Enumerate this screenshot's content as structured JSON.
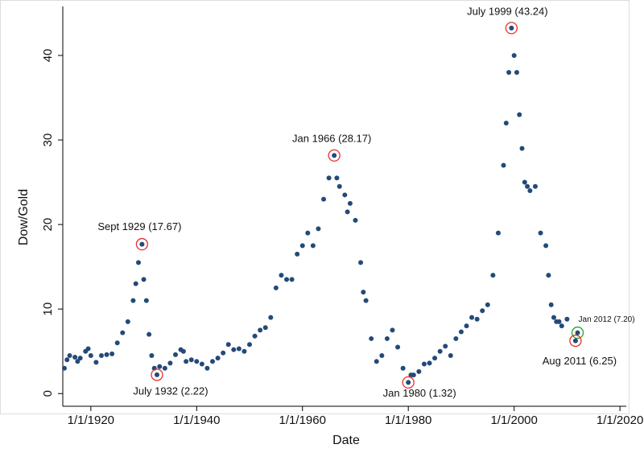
{
  "chart_data": {
    "type": "scatter",
    "xlabel": "Date",
    "ylabel": "Dow/Gold",
    "color": "#234a78",
    "x": [
      1915,
      1915.5,
      1916,
      1917,
      1917.5,
      1918,
      1919,
      1919.5,
      1920,
      1921,
      1922,
      1923,
      1924,
      1925,
      1926,
      1927,
      1928,
      1928.5,
      1929,
      1929.67,
      1930,
      1930.5,
      1931,
      1931.5,
      1932,
      1932.5,
      1933,
      1934,
      1935,
      1936,
      1937,
      1937.5,
      1938,
      1939,
      1940,
      1941,
      1942,
      1943,
      1944,
      1945,
      1946,
      1947,
      1948,
      1949,
      1950,
      1951,
      1952,
      1953,
      1954,
      1955,
      1956,
      1957,
      1958,
      1959,
      1960,
      1961,
      1962,
      1963,
      1964,
      1965,
      1966,
      1966.5,
      1967,
      1968,
      1968.5,
      1969,
      1970,
      1971,
      1971.5,
      1972,
      1973,
      1974,
      1975,
      1976,
      1977,
      1978,
      1979,
      1980,
      1980.5,
      1981,
      1982,
      1983,
      1984,
      1985,
      1986,
      1987,
      1988,
      1989,
      1990,
      1991,
      1992,
      1993,
      1994,
      1995,
      1996,
      1997,
      1998,
      1998.5,
      1999,
      1999.5,
      2000,
      2000.5,
      2001,
      2001.5,
      2002,
      2002.5,
      2003,
      2004,
      2005,
      2006,
      2006.5,
      2007,
      2007.5,
      2008,
      2008.5,
      2009,
      2010,
      2011.6,
      2012
    ],
    "values": [
      3.0,
      4.0,
      4.5,
      4.3,
      3.8,
      4.2,
      5.0,
      5.3,
      4.5,
      3.7,
      4.5,
      4.6,
      4.7,
      6.0,
      7.2,
      8.5,
      11,
      13,
      15.5,
      17.67,
      13.5,
      11,
      7,
      4.5,
      3.0,
      2.22,
      3.2,
      3.0,
      3.6,
      4.6,
      5.2,
      5.0,
      3.8,
      4.0,
      3.8,
      3.5,
      3.0,
      3.8,
      4.2,
      4.8,
      5.8,
      5.2,
      5.3,
      5.0,
      5.8,
      6.8,
      7.5,
      7.8,
      9.0,
      12.5,
      14.0,
      13.5,
      13.5,
      16.5,
      17.5,
      19.0,
      17.5,
      19.5,
      23.0,
      25.5,
      28.17,
      25.5,
      24.5,
      23.5,
      21.5,
      22.5,
      20.5,
      15.5,
      12,
      11,
      6.5,
      3.8,
      4.5,
      6.5,
      7.5,
      5.5,
      3.0,
      1.32,
      2.2,
      2.2,
      2.6,
      3.5,
      3.6,
      4.2,
      5.0,
      5.6,
      4.5,
      6.5,
      7.3,
      8.0,
      9.0,
      8.8,
      9.8,
      10.5,
      14,
      19,
      27,
      32,
      38,
      43.24,
      40,
      38,
      33,
      29,
      25,
      24.5,
      24,
      24.5,
      19,
      17.5,
      14,
      10.5,
      9.0,
      8.5,
      8.5,
      8.0,
      8.8,
      6.25,
      7.2
    ],
    "xlim": [
      1914.7,
      2021.2
    ],
    "ylim": [
      -1.5,
      45.8
    ],
    "xticks": [
      {
        "value": 1920,
        "label": "1/1/1920"
      },
      {
        "value": 1940,
        "label": "1/1/1940"
      },
      {
        "value": 1960,
        "label": "1/1/1960"
      },
      {
        "value": 1980,
        "label": "1/1/1980"
      },
      {
        "value": 2000,
        "label": "1/1/2000"
      },
      {
        "value": 2020,
        "label": "1/1/2020"
      }
    ],
    "yticks": [
      0,
      10,
      20,
      30,
      40
    ],
    "annotations": [
      {
        "text": "Sept 1929 (17.67)",
        "x": 1929.67,
        "y": 17.67,
        "color": "#e8302a"
      },
      {
        "text": "July 1932 (2.22)",
        "x": 1932.5,
        "y": 2.22,
        "color": "#e8302a"
      },
      {
        "text": "Jan 1966 (28.17)",
        "x": 1966,
        "y": 28.17,
        "color": "#e8302a"
      },
      {
        "text": "Jan 1980 (1.32)",
        "x": 1980,
        "y": 1.32,
        "color": "#e8302a"
      },
      {
        "text": "July 1999 (43.24)",
        "x": 1999.5,
        "y": 43.24,
        "color": "#e8302a"
      },
      {
        "text": "Aug 2011 (6.25)",
        "x": 2011.6,
        "y": 6.25,
        "color": "#e8302a"
      },
      {
        "text": "Jan 2012 (7.20)",
        "x": 2012,
        "y": 7.2,
        "color": "#2ca02c"
      }
    ]
  }
}
